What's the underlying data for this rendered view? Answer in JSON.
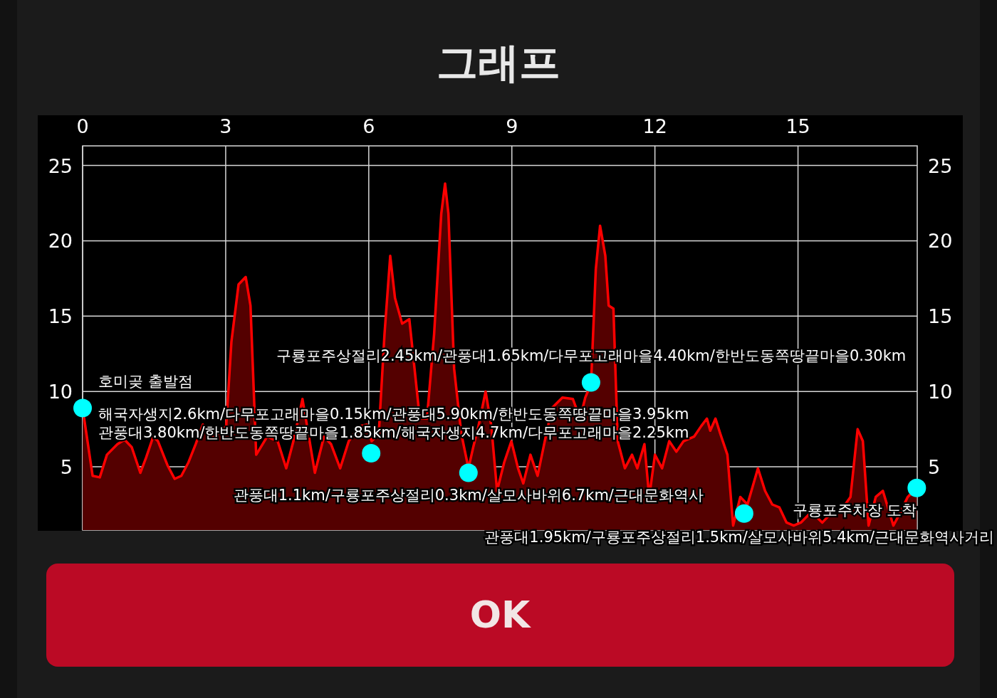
{
  "chart_data": {
    "type": "area",
    "title": "그래프",
    "xlim": [
      0,
      17.5
    ],
    "xticks": [
      0,
      3,
      6,
      9,
      12,
      15
    ],
    "ylim": [
      0.8,
      26.3
    ],
    "yticks": [
      5,
      10,
      15,
      20,
      25
    ],
    "y2lim": [
      0.8,
      26.3
    ],
    "y2ticks": [
      5,
      10,
      15,
      20,
      25
    ],
    "grid": true,
    "series": [
      {
        "type": "area",
        "color": "#ff0000",
        "x": [
          0,
          0.21,
          0.36,
          0.51,
          0.73,
          0.88,
          1.03,
          1.21,
          1.33,
          1.48,
          1.58,
          1.78,
          1.93,
          2.07,
          2.22,
          2.37,
          2.52,
          2.67,
          2.82,
          3.01,
          3.12,
          3.27,
          3.42,
          3.52,
          3.64,
          3.87,
          4.09,
          4.27,
          4.42,
          4.61,
          4.76,
          4.87,
          5.06,
          5.21,
          5.4,
          5.58,
          5.81,
          5.96,
          6.06,
          6.21,
          6.33,
          6.45,
          6.55,
          6.7,
          6.85,
          6.93,
          7.07,
          7.22,
          7.37,
          7.52,
          7.6,
          7.67,
          7.79,
          7.94,
          8.09,
          8.19,
          8.3,
          8.45,
          8.57,
          8.69,
          8.84,
          8.99,
          9.13,
          9.24,
          9.39,
          9.54,
          9.69,
          9.84,
          10.06,
          10.28,
          10.43,
          10.54,
          10.66,
          10.76,
          10.85,
          10.96,
          11.03,
          11.13,
          11.22,
          11.37,
          11.52,
          11.63,
          11.78,
          11.88,
          12.0,
          12.15,
          12.3,
          12.45,
          12.6,
          12.82,
          12.97,
          13.09,
          13.16,
          13.27,
          13.37,
          13.52,
          13.64,
          13.79,
          13.94,
          14.16,
          14.31,
          14.46,
          14.61,
          14.76,
          14.91,
          15.06,
          15.28,
          15.51,
          15.66,
          15.88,
          16.1,
          16.25,
          16.36,
          16.48,
          16.63,
          16.78,
          17.0,
          17.15,
          17.3,
          17.49
        ],
        "values": [
          8.9,
          4.4,
          4.3,
          5.8,
          6.5,
          6.8,
          6.3,
          4.6,
          5.6,
          7.0,
          6.7,
          5.1,
          4.2,
          4.4,
          5.3,
          6.5,
          7.8,
          7.0,
          7.1,
          7.7,
          13.3,
          17.1,
          17.6,
          15.7,
          5.8,
          7.0,
          6.7,
          4.9,
          6.7,
          9.5,
          6.7,
          4.6,
          7.0,
          6.5,
          4.9,
          6.7,
          7.7,
          7.8,
          6.7,
          7.2,
          13.8,
          19.0,
          16.2,
          14.5,
          14.8,
          12.4,
          8.2,
          8.2,
          13.8,
          21.8,
          23.8,
          21.8,
          11.5,
          7.2,
          4.9,
          6.3,
          7.7,
          10.0,
          7.7,
          3.4,
          5.3,
          6.7,
          4.9,
          3.9,
          5.8,
          4.4,
          6.7,
          8.9,
          9.6,
          9.5,
          8.2,
          9.6,
          10.5,
          18.1,
          21.0,
          19.0,
          15.7,
          15.5,
          6.7,
          4.9,
          5.8,
          4.9,
          6.5,
          3.0,
          5.8,
          4.9,
          6.7,
          6.0,
          6.7,
          7.0,
          7.7,
          8.2,
          7.4,
          8.2,
          7.2,
          5.8,
          1.1,
          3.0,
          2.5,
          4.9,
          3.4,
          2.5,
          2.3,
          1.3,
          1.1,
          1.3,
          2.0,
          1.3,
          1.8,
          2.0,
          3.0,
          7.5,
          6.7,
          1.1,
          3.0,
          3.4,
          1.1,
          2.0,
          3.0,
          3.6
        ]
      },
      {
        "type": "scatter",
        "color": "#00ffff",
        "marker": "circle",
        "x": [
          0,
          6.05,
          8.09,
          10.66,
          13.87,
          17.49
        ],
        "values": [
          8.9,
          5.9,
          4.6,
          10.6,
          1.9,
          3.6
        ]
      }
    ],
    "annotations": [
      {
        "text": "호미곶 출발점",
        "x": 0,
        "y": 8.9
      },
      {
        "text": "해국자생지2.6km/다무포고래마을0.15km/관풍대5.90km/한반도동쪽땅끝마을3.95km",
        "x": 6.05,
        "y": 5.9
      },
      {
        "text": "관풍대3.80km/한반도동쪽땅끝마을1.85km/해국자생지4.7km/다무포고래마을2.25km",
        "x": 6.05,
        "y": 5.9
      },
      {
        "text": "관풍대1.1km/구룡포주상절리0.3km/살모사바위6.7km/근대문화역사",
        "x": 8.09,
        "y": 4.6
      },
      {
        "text": "구룡포주상절리2.45km/관풍대1.65km/다무포고래마을4.40km/한반도동쪽땅끝마을0.30km",
        "x": 10.66,
        "y": 10.6
      },
      {
        "text": "관풍대1.95km/구룡포주상절리1.5km/살모사바위5.4km/근대문화역사거리",
        "x": 13.87,
        "y": 1.9
      },
      {
        "text": "구룡포주차장 도착",
        "x": 17.49,
        "y": 3.6
      },
      "OK"
    ]
  }
}
